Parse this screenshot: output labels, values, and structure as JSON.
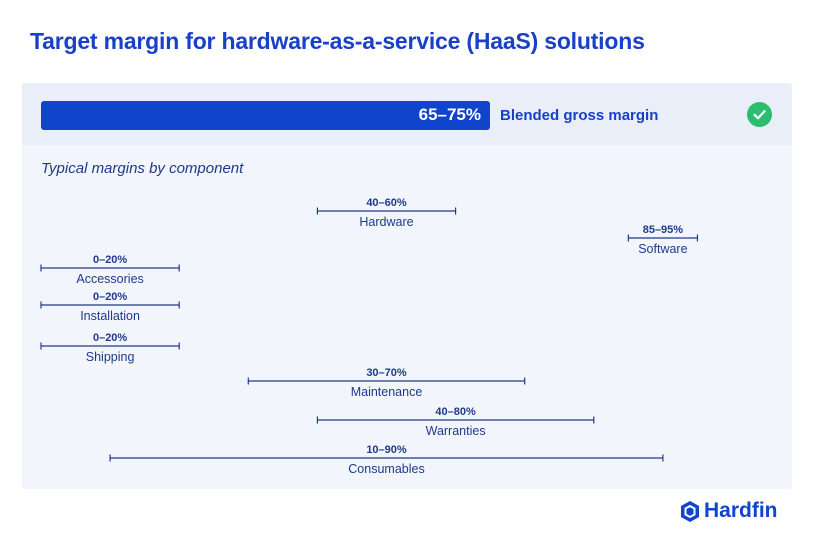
{
  "title": "Target margin for hardware-as-a-service (HaaS) solutions",
  "blended": {
    "value": "65–75%",
    "label": "Blended gross margin",
    "low": 65,
    "high": 75,
    "status_icon": "check-circle-icon",
    "status_color": "#2dbd6e"
  },
  "subtitle": "Typical margins by component",
  "chart_data": {
    "type": "range",
    "xlim": [
      0,
      100
    ],
    "grid": false,
    "items": [
      {
        "name": "Hardware",
        "low": 40,
        "high": 60,
        "label": "40–60%"
      },
      {
        "name": "Software",
        "low": 85,
        "high": 95,
        "label": "85–95%"
      },
      {
        "name": "Accessories",
        "low": 0,
        "high": 20,
        "label": "0–20%"
      },
      {
        "name": "Installation",
        "low": 0,
        "high": 20,
        "label": "0–20%"
      },
      {
        "name": "Shipping",
        "low": 0,
        "high": 20,
        "label": "0–20%"
      },
      {
        "name": "Maintenance",
        "low": 30,
        "high": 70,
        "label": "30–70%"
      },
      {
        "name": "Warranties",
        "low": 40,
        "high": 80,
        "label": "40–80%"
      },
      {
        "name": "Consumables",
        "low": 10,
        "high": 90,
        "label": "10–90%"
      }
    ]
  },
  "colors": {
    "accent": "#1144cc",
    "title": "#1840c8",
    "panel": "#f2f5fb"
  },
  "logo": {
    "text": "Hardfin",
    "icon": "hardfin-hexagon-icon"
  }
}
